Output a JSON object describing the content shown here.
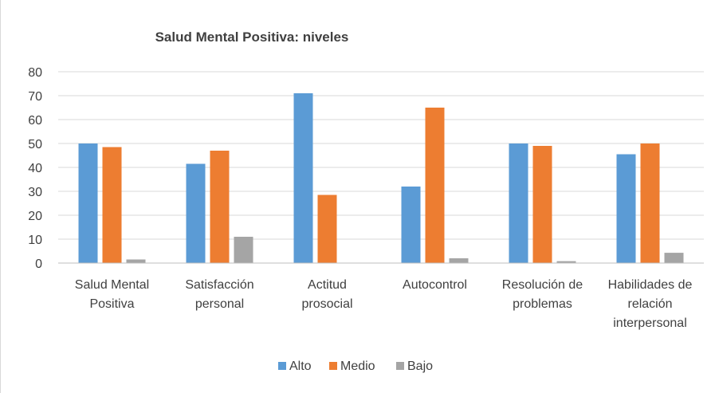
{
  "chart_data": {
    "type": "bar",
    "title": "Salud Mental Positiva: niveles",
    "xlabel": "",
    "ylabel": "",
    "ylim": [
      0,
      80
    ],
    "yticks": [
      0,
      10,
      20,
      30,
      40,
      50,
      60,
      70,
      80
    ],
    "grid": true,
    "legend_position": "bottom",
    "categories": [
      [
        "Salud Mental",
        "Positiva"
      ],
      [
        "Satisfacción",
        "personal"
      ],
      [
        "Actitud",
        "prosocial"
      ],
      [
        "Autocontrol"
      ],
      [
        "Resolución de",
        "problemas"
      ],
      [
        "Habilidades de",
        "relación",
        "interpersonal"
      ]
    ],
    "series": [
      {
        "name": "Alto",
        "color": "#5b9bd5",
        "values": [
          50,
          41.5,
          71,
          32,
          50,
          45.5
        ]
      },
      {
        "name": "Medio",
        "color": "#ed7d31",
        "values": [
          48.5,
          47,
          28.5,
          65,
          49,
          50
        ]
      },
      {
        "name": "Bajo",
        "color": "#a5a5a5",
        "values": [
          1.5,
          11,
          0,
          2,
          0.8,
          4.3
        ]
      }
    ]
  }
}
